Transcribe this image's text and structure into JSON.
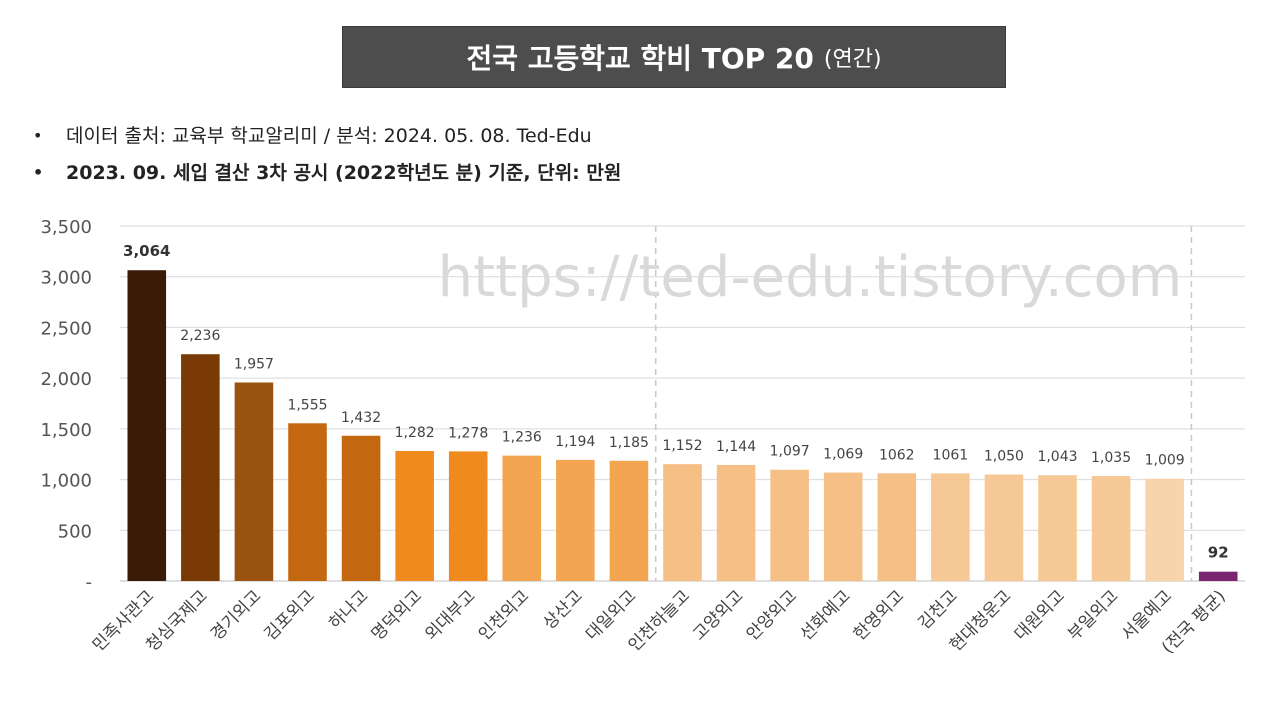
{
  "title": {
    "main": "전국 고등학교 학비 TOP 20",
    "sub": "(연간)"
  },
  "notes": [
    "데이터 출처: 교육부 학교알리미 / 분석: 2024. 05. 08. Ted-Edu",
    "2023. 09. 세입 결산 3차 공시 (2022학년도 분) 기준, 단위: 만원"
  ],
  "watermark": "https://ted-edu.tistory.com",
  "chart_data": {
    "type": "bar",
    "title": "전국 고등학교 학비 TOP 20 (연간)",
    "categories": [
      "민족사관고",
      "청심국제고",
      "경기외고",
      "김포외고",
      "하나고",
      "명덕외고",
      "외대부고",
      "인천외고",
      "상산고",
      "대일외고",
      "인천하늘고",
      "고양외고",
      "안양외고",
      "선화예고",
      "한영외고",
      "김천고",
      "현대청운고",
      "대원외고",
      "부일외고",
      "서울예고",
      "(전국 평균)"
    ],
    "values": [
      3064,
      2236,
      1957,
      1555,
      1432,
      1282,
      1278,
      1236,
      1194,
      1185,
      1152,
      1144,
      1097,
      1069,
      1062,
      1061,
      1050,
      1043,
      1035,
      1009,
      92
    ],
    "value_labels": [
      "3,064",
      "2,236",
      "1,957",
      "1,555",
      "1,432",
      "1,282",
      "1,278",
      "1,236",
      "1,194",
      "1,185",
      "1,152",
      "1,144",
      "1,097",
      "1,069",
      "1062",
      "1061",
      "1,050",
      "1,043",
      "1,035",
      "1,009",
      "92"
    ],
    "bold_labels": [
      true,
      false,
      false,
      false,
      false,
      false,
      false,
      false,
      false,
      false,
      false,
      false,
      false,
      false,
      false,
      false,
      false,
      false,
      false,
      false,
      true
    ],
    "colors": [
      "#3b1a08",
      "#7a3a06",
      "#9a520f",
      "#c4680f",
      "#c4680f",
      "#ee8a1e",
      "#ee8a1e",
      "#f3a552",
      "#f3a552",
      "#f3a552",
      "#f5bf86",
      "#f5bf86",
      "#f5bf86",
      "#f5bf86",
      "#f5bf86",
      "#f5c896",
      "#f5c896",
      "#f5c896",
      "#f5c896",
      "#f8d4aa",
      "#7b2570"
    ],
    "yticks": [
      0,
      500,
      1000,
      1500,
      2000,
      2500,
      3000,
      3500
    ],
    "ytick_labels": [
      "-",
      "500",
      "1,000",
      "1,500",
      "2,000",
      "2,500",
      "3,000",
      "3,500"
    ],
    "ylim": [
      0,
      3500
    ],
    "grid": true,
    "dashed_separators_after_index": [
      9,
      19
    ],
    "xlabel": "",
    "ylabel": "",
    "legend": "none"
  }
}
